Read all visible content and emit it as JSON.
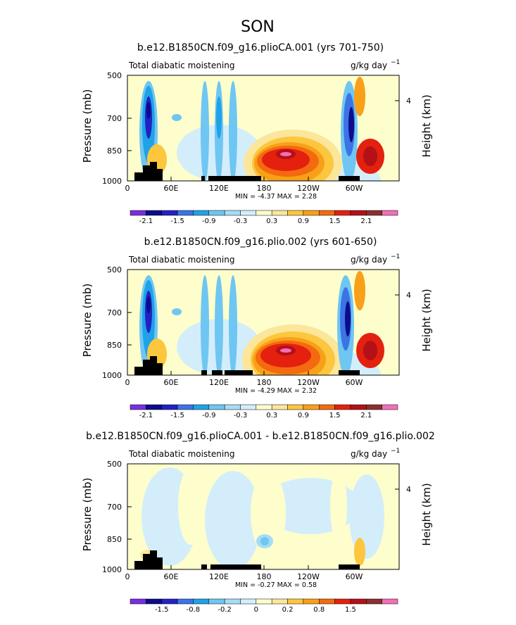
{
  "season": "SON",
  "colorbar_colors": [
    "#7b2de0",
    "#0c0c8c",
    "#2222c4",
    "#3c74e6",
    "#1fa2e8",
    "#6fc6f2",
    "#a6dcf6",
    "#d3eefa",
    "#fefecc",
    "#fbe69a",
    "#fcc63e",
    "#f8a018",
    "#f46a10",
    "#e4200e",
    "#b41018",
    "#8e2e2e",
    "#f070b8"
  ],
  "chart_data": [
    {
      "type": "heatmap",
      "title": "b.e12.B1850CN.f09_g16.plioCA.001 (yrs 701-750)",
      "subtitle": "Total diabatic moistening",
      "units_main": "g/kg day",
      "units_exp": "−1",
      "ylabel": "Pressure (mb)",
      "ylabel_right": "Height (km)",
      "y_ticks": [
        "500",
        "700",
        "850",
        "1000"
      ],
      "y_right_ticks": [
        "4"
      ],
      "x_ticks": [
        "0",
        "60E",
        "120E",
        "180",
        "120W",
        "60W"
      ],
      "min_max": "MIN =   -4.37   MAX =    2.28",
      "colorbar_labels": [
        "-2.1",
        "-1.5",
        "-0.9",
        "-0.3",
        "0.3",
        "0.9",
        "1.5",
        "2.1"
      ]
    },
    {
      "type": "heatmap",
      "title": "b.e12.B1850CN.f09_g16.plio.002 (yrs 601-650)",
      "subtitle": "Total diabatic moistening",
      "units_main": "g/kg day",
      "units_exp": "−1",
      "ylabel": "Pressure (mb)",
      "ylabel_right": "Height (km)",
      "y_ticks": [
        "500",
        "700",
        "850",
        "1000"
      ],
      "y_right_ticks": [
        "4"
      ],
      "x_ticks": [
        "0",
        "60E",
        "120E",
        "180",
        "120W",
        "60W"
      ],
      "min_max": "MIN =   -4.29   MAX =    2.32",
      "colorbar_labels": [
        "-2.1",
        "-1.5",
        "-0.9",
        "-0.3",
        "0.3",
        "0.9",
        "1.5",
        "2.1"
      ]
    },
    {
      "type": "heatmap",
      "title": "b.e12.B1850CN.f09_g16.plioCA.001 - b.e12.B1850CN.f09_g16.plio.002",
      "subtitle": "Total diabatic moistening",
      "units_main": "g/kg day",
      "units_exp": "−1",
      "ylabel": "Pressure (mb)",
      "ylabel_right": "Height (km)",
      "y_ticks": [
        "500",
        "700",
        "850",
        "1000"
      ],
      "y_right_ticks": [
        "4"
      ],
      "x_ticks": [
        "0",
        "60E",
        "120E",
        "180",
        "120W",
        "60W"
      ],
      "min_max": "MIN =   -0.27   MAX =    0.58",
      "colorbar_labels": [
        "-1.5",
        "-0.8",
        "-0.2",
        "0",
        "0.2",
        "0.8",
        "1.5"
      ]
    }
  ]
}
